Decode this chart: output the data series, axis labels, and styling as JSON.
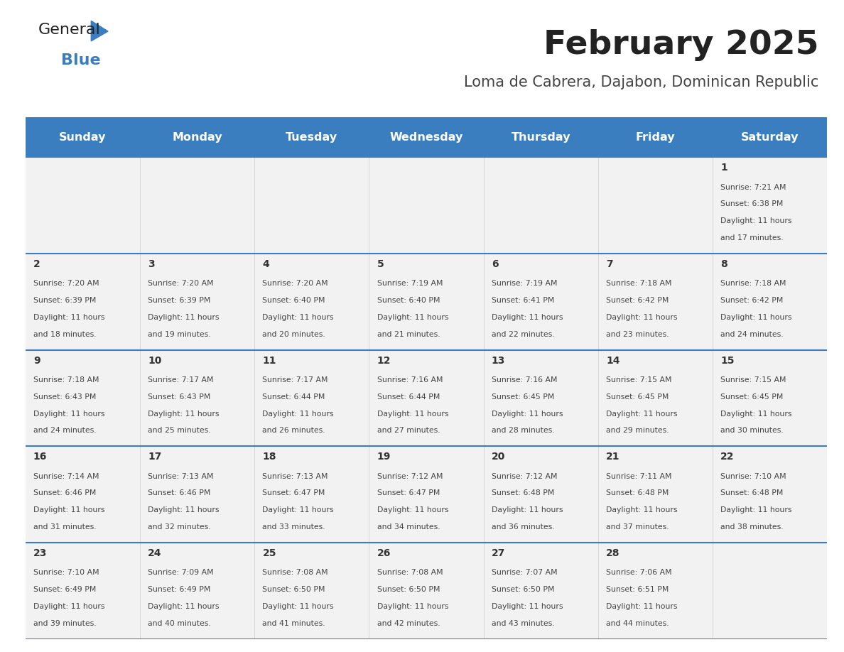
{
  "title": "February 2025",
  "subtitle": "Loma de Cabrera, Dajabon, Dominican Republic",
  "header_bg_color": "#3a7ebf",
  "header_text_color": "#ffffff",
  "cell_bg_color": "#f0f0f0",
  "separator_color": "#3a7ebf",
  "day_number_color": "#333333",
  "cell_text_color": "#444444",
  "day_headers": [
    "Sunday",
    "Monday",
    "Tuesday",
    "Wednesday",
    "Thursday",
    "Friday",
    "Saturday"
  ],
  "days": [
    {
      "day": 1,
      "col": 6,
      "row": 0,
      "sunrise": "7:21 AM",
      "sunset": "6:38 PM",
      "daylight_hours": 11,
      "daylight_minutes": 17
    },
    {
      "day": 2,
      "col": 0,
      "row": 1,
      "sunrise": "7:20 AM",
      "sunset": "6:39 PM",
      "daylight_hours": 11,
      "daylight_minutes": 18
    },
    {
      "day": 3,
      "col": 1,
      "row": 1,
      "sunrise": "7:20 AM",
      "sunset": "6:39 PM",
      "daylight_hours": 11,
      "daylight_minutes": 19
    },
    {
      "day": 4,
      "col": 2,
      "row": 1,
      "sunrise": "7:20 AM",
      "sunset": "6:40 PM",
      "daylight_hours": 11,
      "daylight_minutes": 20
    },
    {
      "day": 5,
      "col": 3,
      "row": 1,
      "sunrise": "7:19 AM",
      "sunset": "6:40 PM",
      "daylight_hours": 11,
      "daylight_minutes": 21
    },
    {
      "day": 6,
      "col": 4,
      "row": 1,
      "sunrise": "7:19 AM",
      "sunset": "6:41 PM",
      "daylight_hours": 11,
      "daylight_minutes": 22
    },
    {
      "day": 7,
      "col": 5,
      "row": 1,
      "sunrise": "7:18 AM",
      "sunset": "6:42 PM",
      "daylight_hours": 11,
      "daylight_minutes": 23
    },
    {
      "day": 8,
      "col": 6,
      "row": 1,
      "sunrise": "7:18 AM",
      "sunset": "6:42 PM",
      "daylight_hours": 11,
      "daylight_minutes": 24
    },
    {
      "day": 9,
      "col": 0,
      "row": 2,
      "sunrise": "7:18 AM",
      "sunset": "6:43 PM",
      "daylight_hours": 11,
      "daylight_minutes": 24
    },
    {
      "day": 10,
      "col": 1,
      "row": 2,
      "sunrise": "7:17 AM",
      "sunset": "6:43 PM",
      "daylight_hours": 11,
      "daylight_minutes": 25
    },
    {
      "day": 11,
      "col": 2,
      "row": 2,
      "sunrise": "7:17 AM",
      "sunset": "6:44 PM",
      "daylight_hours": 11,
      "daylight_minutes": 26
    },
    {
      "day": 12,
      "col": 3,
      "row": 2,
      "sunrise": "7:16 AM",
      "sunset": "6:44 PM",
      "daylight_hours": 11,
      "daylight_minutes": 27
    },
    {
      "day": 13,
      "col": 4,
      "row": 2,
      "sunrise": "7:16 AM",
      "sunset": "6:45 PM",
      "daylight_hours": 11,
      "daylight_minutes": 28
    },
    {
      "day": 14,
      "col": 5,
      "row": 2,
      "sunrise": "7:15 AM",
      "sunset": "6:45 PM",
      "daylight_hours": 11,
      "daylight_minutes": 29
    },
    {
      "day": 15,
      "col": 6,
      "row": 2,
      "sunrise": "7:15 AM",
      "sunset": "6:45 PM",
      "daylight_hours": 11,
      "daylight_minutes": 30
    },
    {
      "day": 16,
      "col": 0,
      "row": 3,
      "sunrise": "7:14 AM",
      "sunset": "6:46 PM",
      "daylight_hours": 11,
      "daylight_minutes": 31
    },
    {
      "day": 17,
      "col": 1,
      "row": 3,
      "sunrise": "7:13 AM",
      "sunset": "6:46 PM",
      "daylight_hours": 11,
      "daylight_minutes": 32
    },
    {
      "day": 18,
      "col": 2,
      "row": 3,
      "sunrise": "7:13 AM",
      "sunset": "6:47 PM",
      "daylight_hours": 11,
      "daylight_minutes": 33
    },
    {
      "day": 19,
      "col": 3,
      "row": 3,
      "sunrise": "7:12 AM",
      "sunset": "6:47 PM",
      "daylight_hours": 11,
      "daylight_minutes": 34
    },
    {
      "day": 20,
      "col": 4,
      "row": 3,
      "sunrise": "7:12 AM",
      "sunset": "6:48 PM",
      "daylight_hours": 11,
      "daylight_minutes": 36
    },
    {
      "day": 21,
      "col": 5,
      "row": 3,
      "sunrise": "7:11 AM",
      "sunset": "6:48 PM",
      "daylight_hours": 11,
      "daylight_minutes": 37
    },
    {
      "day": 22,
      "col": 6,
      "row": 3,
      "sunrise": "7:10 AM",
      "sunset": "6:48 PM",
      "daylight_hours": 11,
      "daylight_minutes": 38
    },
    {
      "day": 23,
      "col": 0,
      "row": 4,
      "sunrise": "7:10 AM",
      "sunset": "6:49 PM",
      "daylight_hours": 11,
      "daylight_minutes": 39
    },
    {
      "day": 24,
      "col": 1,
      "row": 4,
      "sunrise": "7:09 AM",
      "sunset": "6:49 PM",
      "daylight_hours": 11,
      "daylight_minutes": 40
    },
    {
      "day": 25,
      "col": 2,
      "row": 4,
      "sunrise": "7:08 AM",
      "sunset": "6:50 PM",
      "daylight_hours": 11,
      "daylight_minutes": 41
    },
    {
      "day": 26,
      "col": 3,
      "row": 4,
      "sunrise": "7:08 AM",
      "sunset": "6:50 PM",
      "daylight_hours": 11,
      "daylight_minutes": 42
    },
    {
      "day": 27,
      "col": 4,
      "row": 4,
      "sunrise": "7:07 AM",
      "sunset": "6:50 PM",
      "daylight_hours": 11,
      "daylight_minutes": 43
    },
    {
      "day": 28,
      "col": 5,
      "row": 4,
      "sunrise": "7:06 AM",
      "sunset": "6:51 PM",
      "daylight_hours": 11,
      "daylight_minutes": 44
    }
  ]
}
